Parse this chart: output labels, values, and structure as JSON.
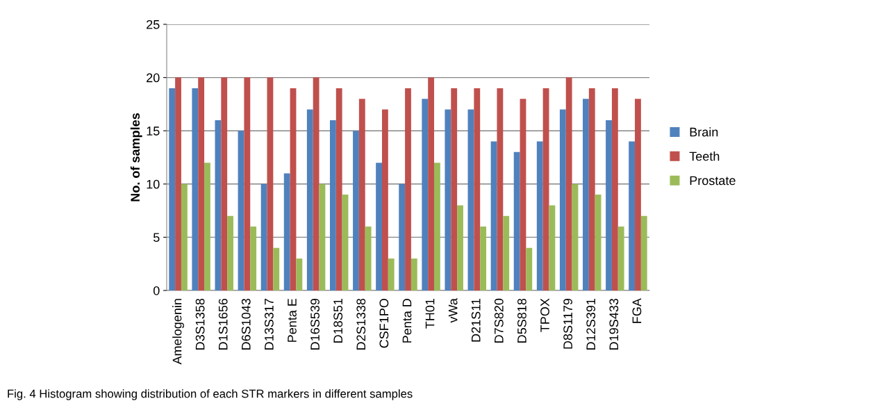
{
  "chart_data": {
    "type": "bar",
    "ylabel": "No. of samples",
    "categories": [
      "Amelogenin",
      "D3S1358",
      "D1S1656",
      "D6S1043",
      "D13S317",
      "Penta E",
      "D16S539",
      "D18S51",
      "D2S1338",
      "CSF1PO",
      "Penta D",
      "TH01",
      "vWa",
      "D21S11",
      "D7S820",
      "D5S818",
      "TPOX",
      "D8S1179",
      "D12S391",
      "D19S433",
      "FGA"
    ],
    "series": [
      {
        "name": "Brain",
        "color": "#4f81bd",
        "values": [
          19,
          19,
          16,
          15,
          10,
          11,
          17,
          16,
          15,
          12,
          10,
          18,
          17,
          17,
          14,
          13,
          14,
          17,
          18,
          16,
          14
        ]
      },
      {
        "name": "Teeth",
        "color": "#c0504d",
        "values": [
          20,
          20,
          20,
          20,
          20,
          19,
          20,
          19,
          18,
          17,
          19,
          20,
          19,
          19,
          19,
          18,
          19,
          20,
          19,
          19,
          18
        ]
      },
      {
        "name": "Prostate",
        "color": "#9bbb59",
        "values": [
          10,
          12,
          7,
          6,
          4,
          3,
          10,
          9,
          6,
          3,
          3,
          12,
          8,
          6,
          7,
          4,
          8,
          10,
          9,
          6,
          7
        ]
      }
    ],
    "ylim": [
      0,
      25
    ],
    "yticks": [
      0,
      5,
      10,
      15,
      20,
      25
    ],
    "grid": "y",
    "legend": "right",
    "annotations": [
      "Fig. 4 Histogram showing distribution of each STR markers in different samples"
    ]
  }
}
